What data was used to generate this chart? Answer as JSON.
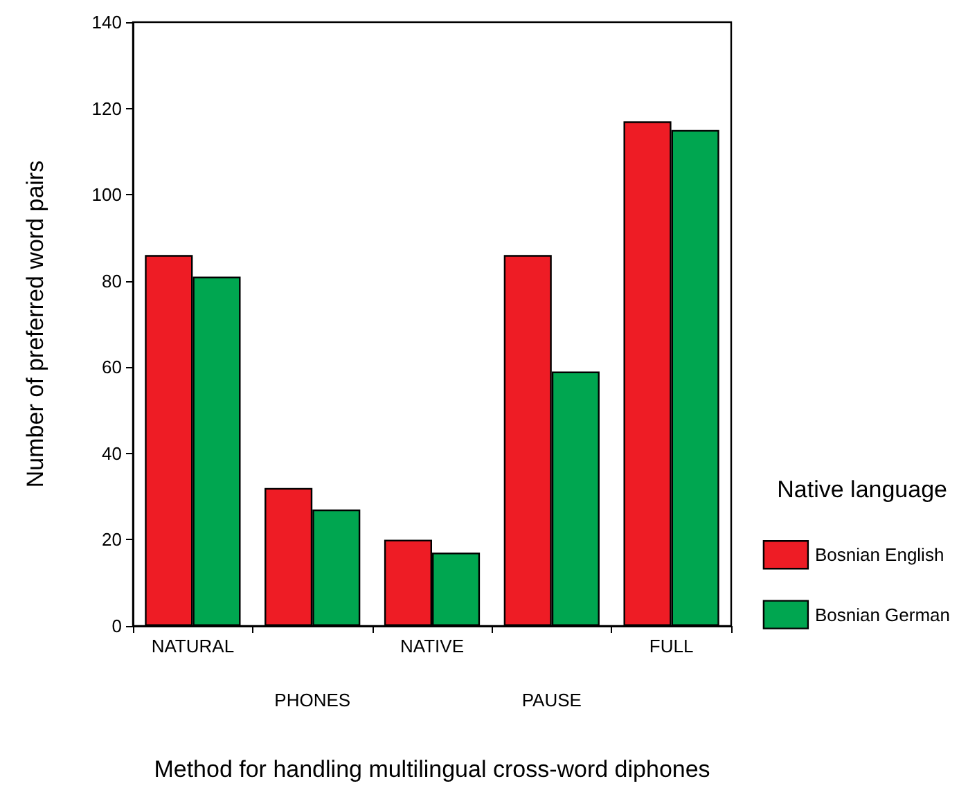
{
  "chart_data": {
    "type": "bar",
    "xlabel": "Method for handling multilingual cross-word diphones",
    "ylabel": "Number of preferred word pairs",
    "legend_title": "Native language",
    "categories": [
      "NATURAL",
      "PHONES",
      "NATIVE",
      "PAUSE",
      "FULL"
    ],
    "series": [
      {
        "name": "Bosnian English",
        "color": "#ee1c25",
        "values": [
          86,
          32,
          20,
          86,
          117
        ]
      },
      {
        "name": "Bosnian German",
        "color": "#00a650",
        "values": [
          81,
          27,
          17,
          59,
          115
        ]
      }
    ],
    "ylim": [
      0,
      140
    ],
    "yticks": [
      0,
      20,
      40,
      60,
      80,
      100,
      120,
      140
    ],
    "grid": false,
    "legend": "right"
  }
}
